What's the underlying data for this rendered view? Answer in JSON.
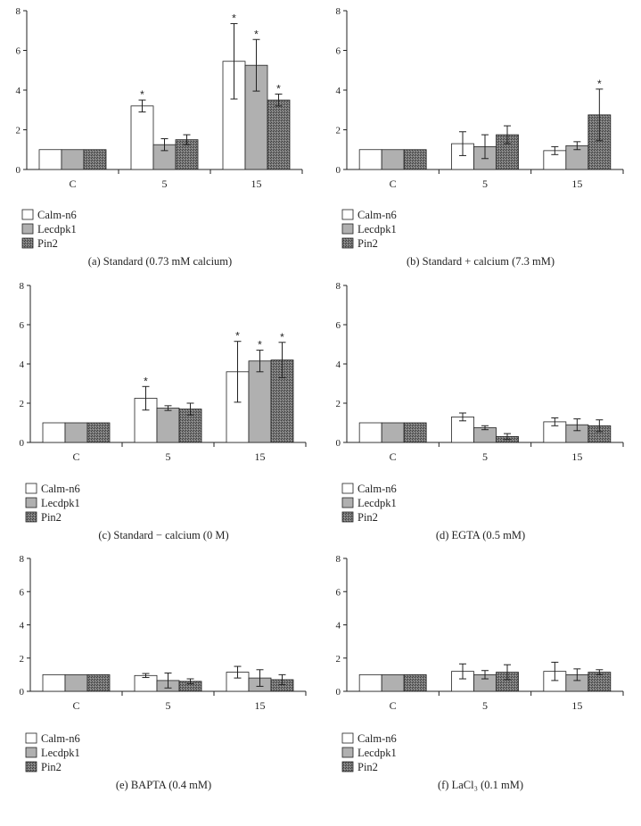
{
  "colors": {
    "calm": "#ffffff",
    "lec": "#b0b0b0",
    "pin": "#707070",
    "axis": "#222222"
  },
  "legend": [
    "Calm-n6",
    "Lecdpk1",
    "Pin2"
  ],
  "chart_data": [
    {
      "type": "bar",
      "title": "(a)  Standard (0.73 mM calcium)",
      "categories": [
        "C",
        "5",
        "15"
      ],
      "ylim": [
        0,
        8
      ],
      "yticks": [
        "0",
        "2",
        "4",
        "6",
        "8"
      ],
      "series": [
        {
          "name": "Calm-n6",
          "values": [
            1.0,
            3.2,
            5.45
          ],
          "errors": [
            0,
            0.3,
            1.9
          ],
          "sig": [
            false,
            true,
            true
          ]
        },
        {
          "name": "Lecdpk1",
          "values": [
            1.0,
            1.25,
            5.25
          ],
          "errors": [
            0,
            0.3,
            1.3
          ],
          "sig": [
            false,
            false,
            true
          ]
        },
        {
          "name": "Pin2",
          "values": [
            1.0,
            1.5,
            3.5
          ],
          "errors": [
            0,
            0.25,
            0.3
          ],
          "sig": [
            false,
            false,
            true
          ]
        }
      ]
    },
    {
      "type": "bar",
      "title": "(b)  Standard + calcium (7.3 mM)",
      "categories": [
        "C",
        "5",
        "15"
      ],
      "ylim": [
        0,
        8
      ],
      "yticks": [
        "0",
        "2",
        "4",
        "6",
        "8"
      ],
      "series": [
        {
          "name": "Calm-n6",
          "values": [
            1.0,
            1.3,
            0.95
          ],
          "errors": [
            0,
            0.6,
            0.2
          ],
          "sig": [
            false,
            false,
            false
          ]
        },
        {
          "name": "Lecdpk1",
          "values": [
            1.0,
            1.15,
            1.2
          ],
          "errors": [
            0,
            0.6,
            0.2
          ],
          "sig": [
            false,
            false,
            false
          ]
        },
        {
          "name": "Pin2",
          "values": [
            1.0,
            1.75,
            2.75
          ],
          "errors": [
            0,
            0.45,
            1.3
          ],
          "sig": [
            false,
            false,
            true
          ]
        }
      ]
    },
    {
      "type": "bar",
      "title": "(c)  Standard − calcium (0 M)",
      "categories": [
        "C",
        "5",
        "15"
      ],
      "ylim": [
        0,
        8
      ],
      "yticks": [
        "0",
        "2",
        "4",
        "6",
        "8"
      ],
      "series": [
        {
          "name": "Calm-n6",
          "values": [
            1.0,
            2.25,
            3.6
          ],
          "errors": [
            0,
            0.6,
            1.55
          ],
          "sig": [
            false,
            true,
            true
          ]
        },
        {
          "name": "Lecdpk1",
          "values": [
            1.0,
            1.75,
            4.15
          ],
          "errors": [
            0,
            0.12,
            0.55
          ],
          "sig": [
            false,
            false,
            true
          ]
        },
        {
          "name": "Pin2",
          "values": [
            1.0,
            1.7,
            4.2
          ],
          "errors": [
            0,
            0.3,
            0.9
          ],
          "sig": [
            false,
            false,
            true
          ]
        }
      ]
    },
    {
      "type": "bar",
      "title": "(d)  EGTA (0.5 mM)",
      "categories": [
        "C",
        "5",
        "15"
      ],
      "ylim": [
        0,
        8
      ],
      "yticks": [
        "0",
        "2",
        "4",
        "6",
        "8"
      ],
      "series": [
        {
          "name": "Calm-n6",
          "values": [
            1.0,
            1.3,
            1.05
          ],
          "errors": [
            0,
            0.2,
            0.2
          ],
          "sig": [
            false,
            false,
            false
          ]
        },
        {
          "name": "Lecdpk1",
          "values": [
            1.0,
            0.75,
            0.9
          ],
          "errors": [
            0,
            0.1,
            0.3
          ],
          "sig": [
            false,
            false,
            false
          ]
        },
        {
          "name": "Pin2",
          "values": [
            1.0,
            0.3,
            0.85
          ],
          "errors": [
            0,
            0.15,
            0.3
          ],
          "sig": [
            false,
            false,
            false
          ]
        }
      ]
    },
    {
      "type": "bar",
      "title": "(e)  BAPTA (0.4 mM)",
      "categories": [
        "C",
        "5",
        "15"
      ],
      "ylim": [
        0,
        8
      ],
      "yticks": [
        "0",
        "2",
        "4",
        "6",
        "8"
      ],
      "series": [
        {
          "name": "Calm-n6",
          "values": [
            1.0,
            0.95,
            1.15
          ],
          "errors": [
            0,
            0.12,
            0.35
          ],
          "sig": [
            false,
            false,
            false
          ]
        },
        {
          "name": "Lecdpk1",
          "values": [
            1.0,
            0.65,
            0.8
          ],
          "errors": [
            0,
            0.45,
            0.5
          ],
          "sig": [
            false,
            false,
            false
          ]
        },
        {
          "name": "Pin2",
          "values": [
            1.0,
            0.6,
            0.7
          ],
          "errors": [
            0,
            0.15,
            0.3
          ],
          "sig": [
            false,
            false,
            false
          ]
        }
      ]
    },
    {
      "type": "bar",
      "title": "(f)  LaCl₃ (0.1 mM)",
      "categories": [
        "C",
        "5",
        "15"
      ],
      "ylim": [
        0,
        8
      ],
      "yticks": [
        "0",
        "2",
        "4",
        "6",
        "8"
      ],
      "series": [
        {
          "name": "Calm-n6",
          "values": [
            1.0,
            1.2,
            1.2
          ],
          "errors": [
            0,
            0.45,
            0.55
          ],
          "sig": [
            false,
            false,
            false
          ]
        },
        {
          "name": "Lecdpk1",
          "values": [
            1.0,
            1.0,
            1.0
          ],
          "errors": [
            0,
            0.25,
            0.35
          ],
          "sig": [
            false,
            false,
            false
          ]
        },
        {
          "name": "Pin2",
          "values": [
            1.0,
            1.15,
            1.15
          ],
          "errors": [
            0,
            0.45,
            0.15
          ],
          "sig": [
            false,
            false,
            false
          ]
        }
      ]
    }
  ]
}
